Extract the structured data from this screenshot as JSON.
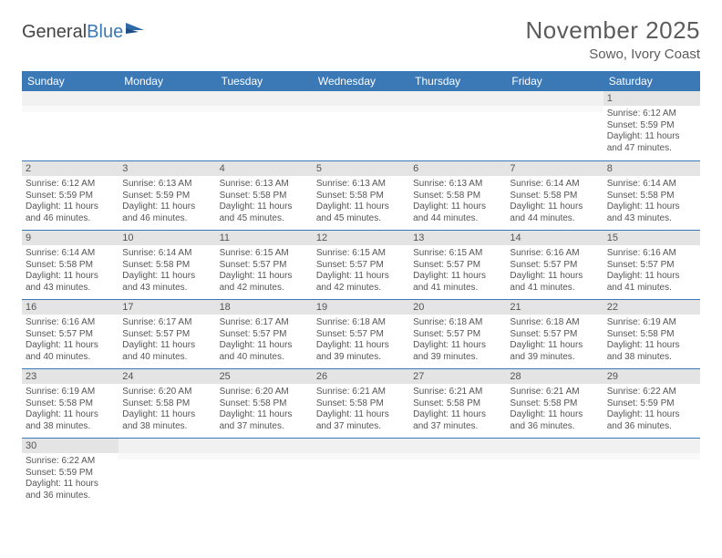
{
  "logo": {
    "text1": "General",
    "text2": "Blue"
  },
  "title": "November 2025",
  "location": "Sowo, Ivory Coast",
  "colors": {
    "header_bg": "#3a78b6",
    "daynum_bg": "#e4e4e4",
    "border": "#3a78b6",
    "text": "#555555"
  },
  "weekdays": [
    "Sunday",
    "Monday",
    "Tuesday",
    "Wednesday",
    "Thursday",
    "Friday",
    "Saturday"
  ],
  "weeks": [
    [
      {
        "n": "",
        "empty": true
      },
      {
        "n": "",
        "empty": true
      },
      {
        "n": "",
        "empty": true
      },
      {
        "n": "",
        "empty": true
      },
      {
        "n": "",
        "empty": true
      },
      {
        "n": "",
        "empty": true
      },
      {
        "n": "1",
        "sr": "Sunrise: 6:12 AM",
        "ss": "Sunset: 5:59 PM",
        "d1": "Daylight: 11 hours",
        "d2": "and 47 minutes."
      }
    ],
    [
      {
        "n": "2",
        "sr": "Sunrise: 6:12 AM",
        "ss": "Sunset: 5:59 PM",
        "d1": "Daylight: 11 hours",
        "d2": "and 46 minutes."
      },
      {
        "n": "3",
        "sr": "Sunrise: 6:13 AM",
        "ss": "Sunset: 5:59 PM",
        "d1": "Daylight: 11 hours",
        "d2": "and 46 minutes."
      },
      {
        "n": "4",
        "sr": "Sunrise: 6:13 AM",
        "ss": "Sunset: 5:58 PM",
        "d1": "Daylight: 11 hours",
        "d2": "and 45 minutes."
      },
      {
        "n": "5",
        "sr": "Sunrise: 6:13 AM",
        "ss": "Sunset: 5:58 PM",
        "d1": "Daylight: 11 hours",
        "d2": "and 45 minutes."
      },
      {
        "n": "6",
        "sr": "Sunrise: 6:13 AM",
        "ss": "Sunset: 5:58 PM",
        "d1": "Daylight: 11 hours",
        "d2": "and 44 minutes."
      },
      {
        "n": "7",
        "sr": "Sunrise: 6:14 AM",
        "ss": "Sunset: 5:58 PM",
        "d1": "Daylight: 11 hours",
        "d2": "and 44 minutes."
      },
      {
        "n": "8",
        "sr": "Sunrise: 6:14 AM",
        "ss": "Sunset: 5:58 PM",
        "d1": "Daylight: 11 hours",
        "d2": "and 43 minutes."
      }
    ],
    [
      {
        "n": "9",
        "sr": "Sunrise: 6:14 AM",
        "ss": "Sunset: 5:58 PM",
        "d1": "Daylight: 11 hours",
        "d2": "and 43 minutes."
      },
      {
        "n": "10",
        "sr": "Sunrise: 6:14 AM",
        "ss": "Sunset: 5:58 PM",
        "d1": "Daylight: 11 hours",
        "d2": "and 43 minutes."
      },
      {
        "n": "11",
        "sr": "Sunrise: 6:15 AM",
        "ss": "Sunset: 5:57 PM",
        "d1": "Daylight: 11 hours",
        "d2": "and 42 minutes."
      },
      {
        "n": "12",
        "sr": "Sunrise: 6:15 AM",
        "ss": "Sunset: 5:57 PM",
        "d1": "Daylight: 11 hours",
        "d2": "and 42 minutes."
      },
      {
        "n": "13",
        "sr": "Sunrise: 6:15 AM",
        "ss": "Sunset: 5:57 PM",
        "d1": "Daylight: 11 hours",
        "d2": "and 41 minutes."
      },
      {
        "n": "14",
        "sr": "Sunrise: 6:16 AM",
        "ss": "Sunset: 5:57 PM",
        "d1": "Daylight: 11 hours",
        "d2": "and 41 minutes."
      },
      {
        "n": "15",
        "sr": "Sunrise: 6:16 AM",
        "ss": "Sunset: 5:57 PM",
        "d1": "Daylight: 11 hours",
        "d2": "and 41 minutes."
      }
    ],
    [
      {
        "n": "16",
        "sr": "Sunrise: 6:16 AM",
        "ss": "Sunset: 5:57 PM",
        "d1": "Daylight: 11 hours",
        "d2": "and 40 minutes."
      },
      {
        "n": "17",
        "sr": "Sunrise: 6:17 AM",
        "ss": "Sunset: 5:57 PM",
        "d1": "Daylight: 11 hours",
        "d2": "and 40 minutes."
      },
      {
        "n": "18",
        "sr": "Sunrise: 6:17 AM",
        "ss": "Sunset: 5:57 PM",
        "d1": "Daylight: 11 hours",
        "d2": "and 40 minutes."
      },
      {
        "n": "19",
        "sr": "Sunrise: 6:18 AM",
        "ss": "Sunset: 5:57 PM",
        "d1": "Daylight: 11 hours",
        "d2": "and 39 minutes."
      },
      {
        "n": "20",
        "sr": "Sunrise: 6:18 AM",
        "ss": "Sunset: 5:57 PM",
        "d1": "Daylight: 11 hours",
        "d2": "and 39 minutes."
      },
      {
        "n": "21",
        "sr": "Sunrise: 6:18 AM",
        "ss": "Sunset: 5:57 PM",
        "d1": "Daylight: 11 hours",
        "d2": "and 39 minutes."
      },
      {
        "n": "22",
        "sr": "Sunrise: 6:19 AM",
        "ss": "Sunset: 5:58 PM",
        "d1": "Daylight: 11 hours",
        "d2": "and 38 minutes."
      }
    ],
    [
      {
        "n": "23",
        "sr": "Sunrise: 6:19 AM",
        "ss": "Sunset: 5:58 PM",
        "d1": "Daylight: 11 hours",
        "d2": "and 38 minutes."
      },
      {
        "n": "24",
        "sr": "Sunrise: 6:20 AM",
        "ss": "Sunset: 5:58 PM",
        "d1": "Daylight: 11 hours",
        "d2": "and 38 minutes."
      },
      {
        "n": "25",
        "sr": "Sunrise: 6:20 AM",
        "ss": "Sunset: 5:58 PM",
        "d1": "Daylight: 11 hours",
        "d2": "and 37 minutes."
      },
      {
        "n": "26",
        "sr": "Sunrise: 6:21 AM",
        "ss": "Sunset: 5:58 PM",
        "d1": "Daylight: 11 hours",
        "d2": "and 37 minutes."
      },
      {
        "n": "27",
        "sr": "Sunrise: 6:21 AM",
        "ss": "Sunset: 5:58 PM",
        "d1": "Daylight: 11 hours",
        "d2": "and 37 minutes."
      },
      {
        "n": "28",
        "sr": "Sunrise: 6:21 AM",
        "ss": "Sunset: 5:58 PM",
        "d1": "Daylight: 11 hours",
        "d2": "and 36 minutes."
      },
      {
        "n": "29",
        "sr": "Sunrise: 6:22 AM",
        "ss": "Sunset: 5:59 PM",
        "d1": "Daylight: 11 hours",
        "d2": "and 36 minutes."
      }
    ],
    [
      {
        "n": "30",
        "sr": "Sunrise: 6:22 AM",
        "ss": "Sunset: 5:59 PM",
        "d1": "Daylight: 11 hours",
        "d2": "and 36 minutes."
      },
      {
        "n": "",
        "empty": true
      },
      {
        "n": "",
        "empty": true
      },
      {
        "n": "",
        "empty": true
      },
      {
        "n": "",
        "empty": true
      },
      {
        "n": "",
        "empty": true
      },
      {
        "n": "",
        "empty": true
      }
    ]
  ]
}
